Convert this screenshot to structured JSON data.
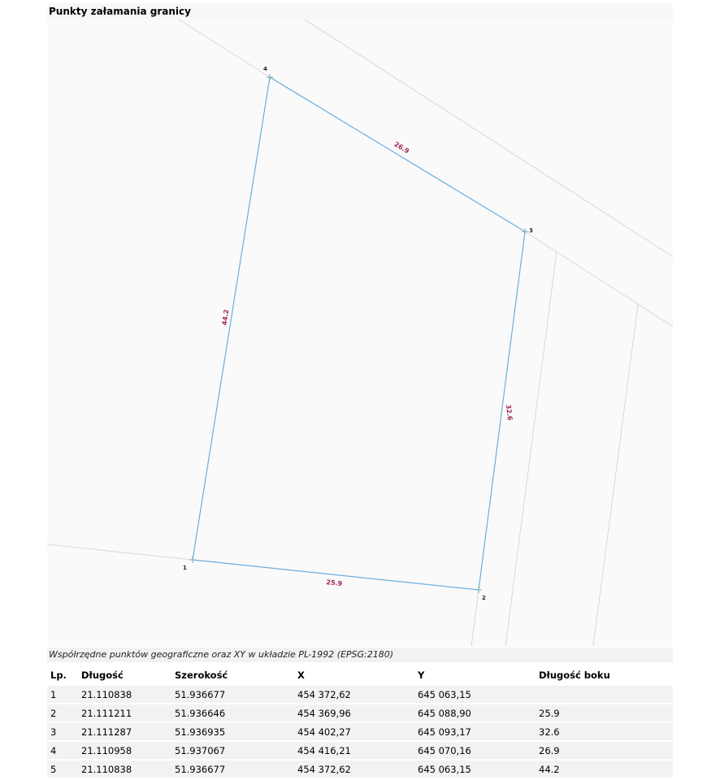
{
  "title": "Punkty załamania granicy",
  "map": {
    "boundary_color": "#6aaee0",
    "label_color": "#a0245c",
    "points": [
      {
        "label": "1"
      },
      {
        "label": "2"
      },
      {
        "label": "3"
      },
      {
        "label": "4"
      }
    ],
    "edges": [
      {
        "label": "25.9"
      },
      {
        "label": "32.6"
      },
      {
        "label": "26.9"
      },
      {
        "label": "44.2"
      }
    ]
  },
  "caption": "Współrzędne punktów geograficzne oraz XY w układzie PL-1992 (EPSG:2180)",
  "table": {
    "headers": [
      "Lp.",
      "Długość",
      "Szerokość",
      "X",
      "Y",
      "Długość boku"
    ],
    "rows": [
      [
        "1",
        "21.110838",
        "51.936677",
        "454 372,62",
        "645 063,15",
        ""
      ],
      [
        "2",
        "21.111211",
        "51.936646",
        "454 369,96",
        "645 088,90",
        "25.9"
      ],
      [
        "3",
        "21.111287",
        "51.936935",
        "454 402,27",
        "645 093,17",
        "32.6"
      ],
      [
        "4",
        "21.110958",
        "51.937067",
        "454 416,21",
        "645 070,16",
        "26.9"
      ],
      [
        "5",
        "21.110838",
        "51.936677",
        "454 372,62",
        "645 063,15",
        "44.2"
      ]
    ]
  }
}
